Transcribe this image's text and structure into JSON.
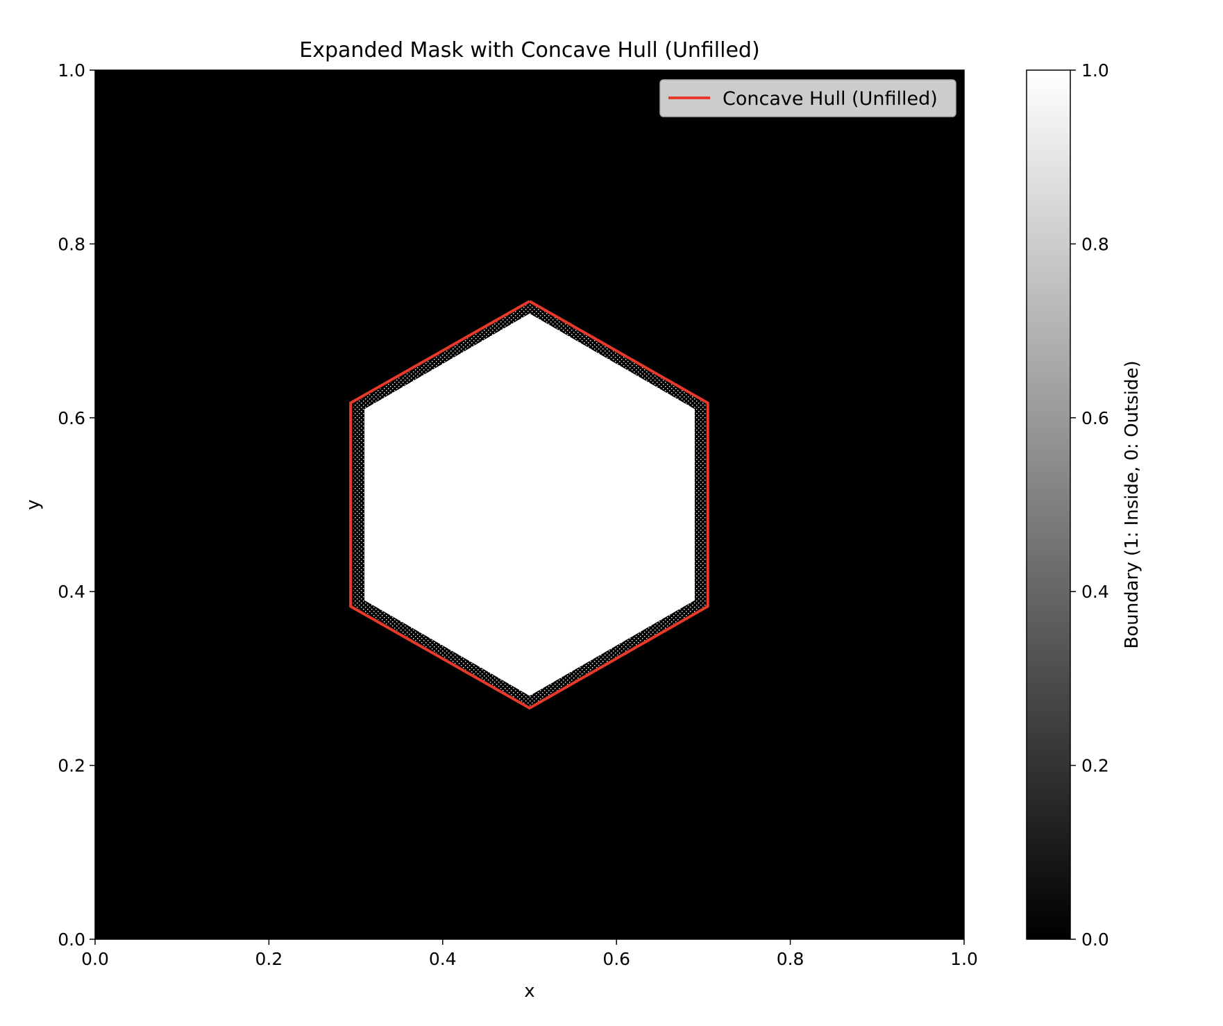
{
  "chart_data": {
    "type": "heatmap",
    "title": "Expanded Mask with Concave Hull (Unfilled)",
    "xlabel": "x",
    "ylabel": "y",
    "xlim": [
      0.0,
      1.0
    ],
    "ylim": [
      0.0,
      1.0
    ],
    "x_ticks": [
      "0.0",
      "0.2",
      "0.4",
      "0.6",
      "0.8",
      "1.0"
    ],
    "y_ticks": [
      "0.0",
      "0.2",
      "0.4",
      "0.6",
      "0.8",
      "1.0"
    ],
    "x_tick_values": [
      0.0,
      0.2,
      0.4,
      0.6,
      0.8,
      1.0
    ],
    "y_tick_values": [
      0.0,
      0.2,
      0.4,
      0.6,
      0.8,
      1.0
    ],
    "mask": {
      "description_colormap": "gray",
      "background_value": 0,
      "inside_value": 1,
      "hexagon_vertices": [
        [
          0.5,
          0.72
        ],
        [
          0.69,
          0.61
        ],
        [
          0.69,
          0.39
        ],
        [
          0.5,
          0.28
        ],
        [
          0.31,
          0.39
        ],
        [
          0.31,
          0.61
        ]
      ],
      "band_outer_vertices": [
        [
          0.5,
          0.732
        ],
        [
          0.703,
          0.616
        ],
        [
          0.703,
          0.384
        ],
        [
          0.5,
          0.268
        ],
        [
          0.297,
          0.384
        ],
        [
          0.297,
          0.616
        ]
      ]
    },
    "series": [
      {
        "name": "Concave Hull (Unfilled)",
        "type": "line",
        "color": "#e8392b",
        "x": [
          0.5,
          0.705,
          0.705,
          0.5,
          0.294,
          0.294,
          0.5
        ],
        "y": [
          0.734,
          0.617,
          0.383,
          0.266,
          0.383,
          0.617,
          0.734
        ]
      }
    ],
    "legend": {
      "position": "top-right",
      "entries": [
        "Concave Hull (Unfilled)"
      ]
    },
    "colorbar": {
      "label": "Boundary (1: Inside, 0: Outside)",
      "range": [
        0.0,
        1.0
      ],
      "ticks": [
        "0.0",
        "0.2",
        "0.4",
        "0.6",
        "0.8",
        "1.0"
      ],
      "tick_values": [
        0.0,
        0.2,
        0.4,
        0.6,
        0.8,
        1.0
      ]
    },
    "grid": false
  }
}
